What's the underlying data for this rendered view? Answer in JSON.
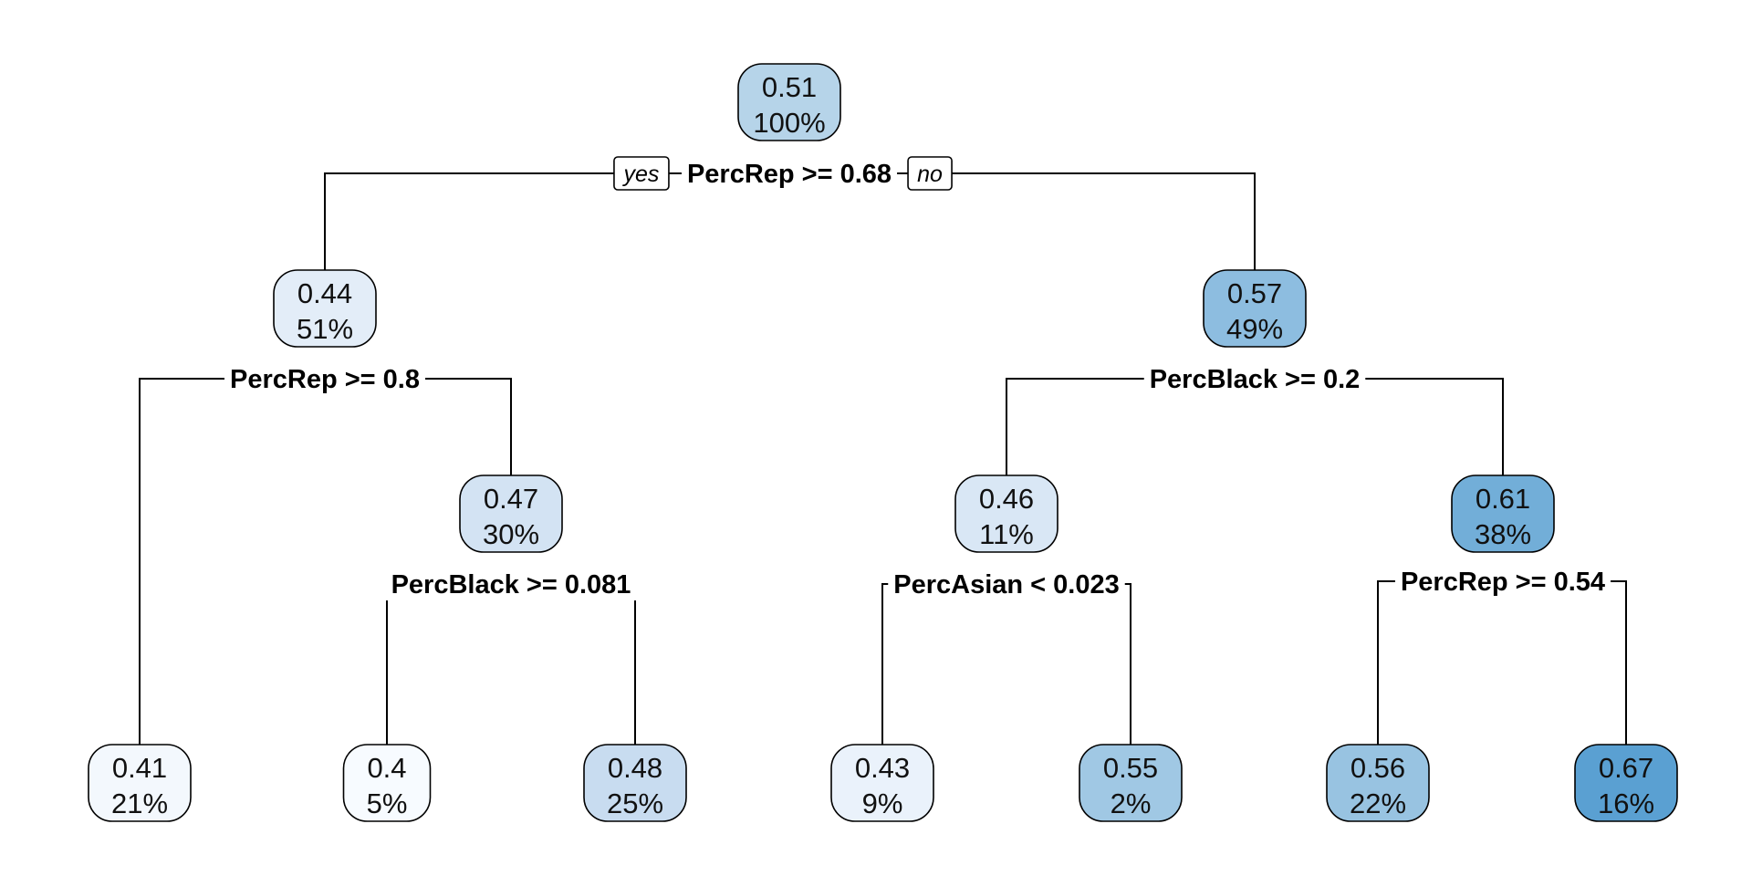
{
  "tree": {
    "branch_labels": {
      "yes": "yes",
      "no": "no"
    },
    "colors": {
      "0.4": "#f7fbff",
      "0.41": "#f3f8fd",
      "0.43": "#eaf2fb",
      "0.44": "#e3edf8",
      "0.46": "#d9e7f5",
      "0.47": "#d3e3f3",
      "0.48": "#c8dcf0",
      "0.51": "#b6d4e9",
      "0.55": "#a0c8e4",
      "0.56": "#98c3e1",
      "0.57": "#8dbde0",
      "0.61": "#72aed8",
      "0.67": "#5aa0d2"
    },
    "nodes": [
      {
        "id": "root",
        "value": "0.51",
        "percent": "100%"
      },
      {
        "id": "L",
        "value": "0.44",
        "percent": "51%"
      },
      {
        "id": "R",
        "value": "0.57",
        "percent": "49%"
      },
      {
        "id": "LR",
        "value": "0.47",
        "percent": "30%"
      },
      {
        "id": "RL",
        "value": "0.46",
        "percent": "11%"
      },
      {
        "id": "RR",
        "value": "0.61",
        "percent": "38%"
      },
      {
        "id": "LL",
        "value": "0.41",
        "percent": "21%"
      },
      {
        "id": "LRL",
        "value": "0.4",
        "percent": "5%"
      },
      {
        "id": "LRR",
        "value": "0.48",
        "percent": "25%"
      },
      {
        "id": "RLL",
        "value": "0.43",
        "percent": "9%"
      },
      {
        "id": "RLR",
        "value": "0.55",
        "percent": "2%"
      },
      {
        "id": "RRL",
        "value": "0.56",
        "percent": "22%"
      },
      {
        "id": "RRR",
        "value": "0.67",
        "percent": "16%"
      }
    ],
    "splits": [
      {
        "node": "root",
        "label": "PercRep >= 0.68"
      },
      {
        "node": "L",
        "label": "PercRep >= 0.8"
      },
      {
        "node": "LR",
        "label": "PercBlack >= 0.081"
      },
      {
        "node": "R",
        "label": "PercBlack >= 0.2"
      },
      {
        "node": "RL",
        "label": "PercAsian < 0.023"
      },
      {
        "node": "RR",
        "label": "PercRep >= 0.54"
      }
    ]
  }
}
